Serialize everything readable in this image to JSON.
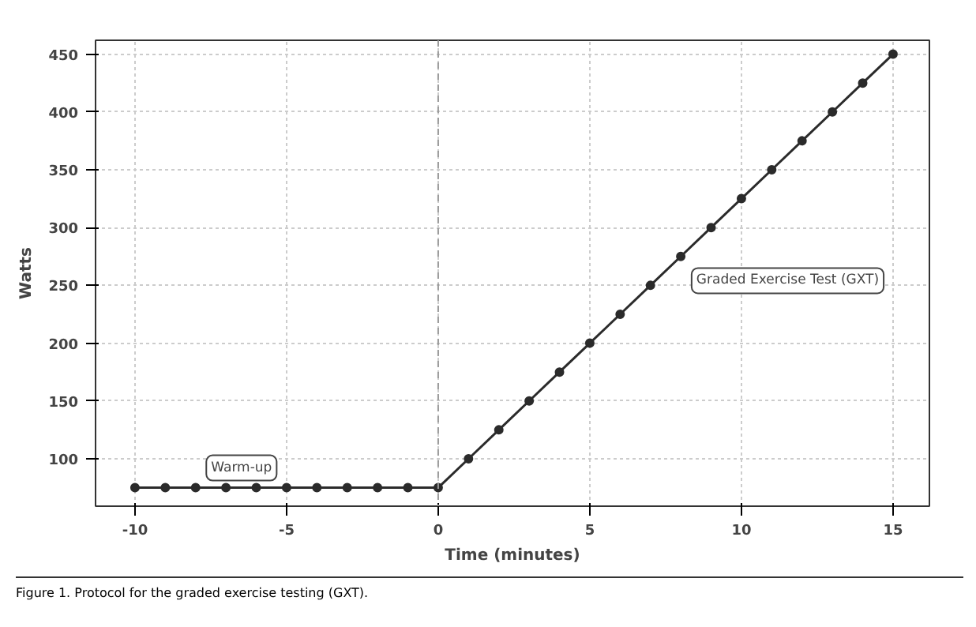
{
  "chart_data": {
    "type": "line",
    "xlabel": "Time (minutes)",
    "ylabel": "Watts",
    "x": [
      -10,
      -9,
      -8,
      -7,
      -6,
      -5,
      -4,
      -3,
      -2,
      -1,
      0,
      1,
      2,
      3,
      4,
      5,
      6,
      7,
      8,
      9,
      10,
      11,
      12,
      13,
      14,
      15
    ],
    "series": [
      {
        "color": "#2b2b2b",
        "values": [
          75,
          75,
          75,
          75,
          75,
          75,
          75,
          75,
          75,
          75,
          75,
          100,
          125,
          150,
          175,
          200,
          225,
          250,
          275,
          300,
          325,
          350,
          375,
          400,
          425,
          450
        ]
      }
    ],
    "xlim": [
      -11.3,
      16.2
    ],
    "ylim": [
      59,
      462
    ],
    "xticks": [
      -10,
      -5,
      0,
      5,
      10,
      15
    ],
    "yticks": [
      100,
      150,
      200,
      250,
      300,
      350,
      400,
      450
    ],
    "grid": true,
    "marker": "circle",
    "line_style": "solid",
    "ref_lines": [
      {
        "axis": "x",
        "value": 0,
        "color": "#999999",
        "line_style": "dashed"
      }
    ],
    "annotations": [
      "Warm-up",
      "Graded Exercise Test (GXT)",
      "Figure 1. Protocol for the graded exercise testing (GXT)."
    ]
  }
}
